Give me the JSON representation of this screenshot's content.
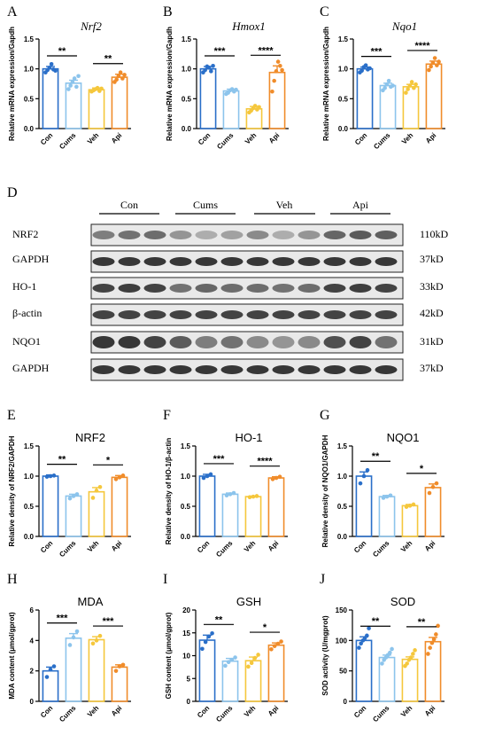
{
  "colors": {
    "Con": "#2a6fc9",
    "Cums": "#8cc4ec",
    "Veh": "#f5c73c",
    "Api": "#f08c2a"
  },
  "chart_data": [
    {
      "id": "A",
      "letter": "A",
      "type": "bar",
      "title": "Nrf2",
      "title_italic": true,
      "ylabel": "Relative mRNA expression/Gapdh",
      "ylim": [
        0,
        1.5
      ],
      "yticks": [
        0.0,
        0.5,
        1.0,
        1.5
      ],
      "tick_labels": [
        "0.0",
        "0.5",
        "1.0",
        "1.5"
      ],
      "categories": [
        "Con",
        "Cums",
        "Veh",
        "Api"
      ],
      "values": [
        1.0,
        0.76,
        0.65,
        0.86
      ],
      "errors": [
        0.04,
        0.05,
        0.03,
        0.05
      ],
      "points": [
        [
          0.94,
          0.98,
          1.02,
          1.08,
          0.99,
          0.97
        ],
        [
          0.66,
          0.72,
          0.78,
          0.84,
          0.7,
          0.88
        ],
        [
          0.62,
          0.64,
          0.66,
          0.68,
          0.63,
          0.67
        ],
        [
          0.78,
          0.82,
          0.88,
          0.94,
          0.84,
          0.9
        ]
      ],
      "sig": [
        {
          "from": 0,
          "to": 1,
          "label": "**"
        },
        {
          "from": 2,
          "to": 3,
          "label": "**"
        }
      ]
    },
    {
      "id": "B",
      "letter": "B",
      "type": "bar",
      "title": "Hmox1",
      "title_italic": true,
      "ylabel": "Relative mRNA expression/Gapdh",
      "ylim": [
        0,
        1.5
      ],
      "yticks": [
        0.0,
        0.5,
        1.0,
        1.5
      ],
      "tick_labels": [
        "0.0",
        "0.5",
        "1.0",
        "1.5"
      ],
      "categories": [
        "Con",
        "Cums",
        "Veh",
        "Api"
      ],
      "values": [
        1.0,
        0.63,
        0.33,
        0.94
      ],
      "errors": [
        0.04,
        0.03,
        0.04,
        0.11
      ],
      "points": [
        [
          0.94,
          0.98,
          1.04,
          1.02,
          0.96,
          1.05
        ],
        [
          0.58,
          0.6,
          0.64,
          0.66,
          0.62,
          0.65
        ],
        [
          0.27,
          0.3,
          0.34,
          0.38,
          0.32,
          0.36
        ],
        [
          0.62,
          0.8,
          0.96,
          1.12,
          1.05,
          0.98
        ]
      ],
      "sig": [
        {
          "from": 0,
          "to": 1,
          "label": "***"
        },
        {
          "from": 2,
          "to": 3,
          "label": "****"
        }
      ]
    },
    {
      "id": "C",
      "letter": "C",
      "type": "bar",
      "title": "Nqo1",
      "title_italic": true,
      "ylabel": "Relative mRNA expression/Gapdh",
      "ylim": [
        0,
        1.5
      ],
      "yticks": [
        0.0,
        0.5,
        1.0,
        1.5
      ],
      "tick_labels": [
        "0.0",
        "0.5",
        "1.0",
        "1.5"
      ],
      "categories": [
        "Con",
        "Cums",
        "Veh",
        "Api"
      ],
      "values": [
        1.0,
        0.72,
        0.7,
        1.08
      ],
      "errors": [
        0.03,
        0.04,
        0.04,
        0.05
      ],
      "points": [
        [
          0.94,
          0.97,
          1.03,
          1.06,
          0.99,
          1.01
        ],
        [
          0.64,
          0.68,
          0.74,
          0.8,
          0.7,
          0.72
        ],
        [
          0.6,
          0.66,
          0.72,
          0.78,
          0.68,
          0.74
        ],
        [
          0.98,
          1.04,
          1.1,
          1.18,
          1.06,
          1.12
        ]
      ],
      "sig": [
        {
          "from": 0,
          "to": 1,
          "label": "***"
        },
        {
          "from": 2,
          "to": 3,
          "label": "****"
        }
      ]
    },
    {
      "id": "E",
      "letter": "E",
      "type": "bar",
      "title": "NRF2",
      "title_italic": false,
      "ylabel": "Relative density of NRF2/GAPDH",
      "ylim": [
        0,
        1.5
      ],
      "yticks": [
        0.0,
        0.5,
        1.0,
        1.5
      ],
      "tick_labels": [
        "0.0",
        "0.5",
        "1.0",
        "1.5"
      ],
      "categories": [
        "Con",
        "Cums",
        "Veh",
        "Api"
      ],
      "values": [
        1.0,
        0.67,
        0.74,
        0.98
      ],
      "errors": [
        0.02,
        0.03,
        0.07,
        0.03
      ],
      "points": [
        [
          0.99,
          1.0,
          1.01
        ],
        [
          0.63,
          0.67,
          0.7
        ],
        [
          0.64,
          0.76,
          0.82
        ],
        [
          0.95,
          0.98,
          1.01
        ]
      ],
      "sig": [
        {
          "from": 0,
          "to": 1,
          "label": "**"
        },
        {
          "from": 2,
          "to": 3,
          "label": "*"
        }
      ]
    },
    {
      "id": "F",
      "letter": "F",
      "type": "bar",
      "title": "HO-1",
      "title_italic": false,
      "ylabel": "Relative density of HO-1/β-actin",
      "ylim": [
        0,
        1.5
      ],
      "yticks": [
        0.0,
        0.5,
        1.0,
        1.5
      ],
      "tick_labels": [
        "0.0",
        "0.5",
        "1.0",
        "1.5"
      ],
      "categories": [
        "Con",
        "Cums",
        "Veh",
        "Api"
      ],
      "values": [
        1.0,
        0.7,
        0.66,
        0.97
      ],
      "errors": [
        0.03,
        0.02,
        0.01,
        0.02
      ],
      "points": [
        [
          0.97,
          1.0,
          1.03
        ],
        [
          0.68,
          0.7,
          0.72
        ],
        [
          0.65,
          0.66,
          0.67
        ],
        [
          0.95,
          0.97,
          0.99
        ]
      ],
      "sig": [
        {
          "from": 0,
          "to": 1,
          "label": "***"
        },
        {
          "from": 2,
          "to": 3,
          "label": "****"
        }
      ]
    },
    {
      "id": "G",
      "letter": "G",
      "type": "bar",
      "title": "NQO1",
      "title_italic": false,
      "ylabel": "Relative density of NQO1/GAPDH",
      "ylim": [
        0,
        1.5
      ],
      "yticks": [
        0.0,
        0.5,
        1.0,
        1.5
      ],
      "tick_labels": [
        "0.0",
        "0.5",
        "1.0",
        "1.5"
      ],
      "categories": [
        "Con",
        "Cums",
        "Veh",
        "Api"
      ],
      "values": [
        1.0,
        0.66,
        0.51,
        0.81
      ],
      "errors": [
        0.07,
        0.02,
        0.02,
        0.06
      ],
      "points": [
        [
          0.88,
          1.0,
          1.1
        ],
        [
          0.64,
          0.66,
          0.68
        ],
        [
          0.49,
          0.51,
          0.53
        ],
        [
          0.72,
          0.82,
          0.88
        ]
      ],
      "sig": [
        {
          "from": 0,
          "to": 1,
          "label": "**"
        },
        {
          "from": 2,
          "to": 3,
          "label": "*"
        }
      ]
    },
    {
      "id": "H",
      "letter": "H",
      "type": "bar",
      "title": "MDA",
      "title_italic": false,
      "ylabel": "MDA content (μmol/gprot)",
      "ylim": [
        0,
        6
      ],
      "yticks": [
        0,
        2,
        4,
        6
      ],
      "tick_labels": [
        "0",
        "2",
        "4",
        "6"
      ],
      "categories": [
        "Con",
        "Cums",
        "Veh",
        "Api"
      ],
      "values": [
        2.0,
        4.15,
        4.05,
        2.25
      ],
      "errors": [
        0.25,
        0.3,
        0.2,
        0.15
      ],
      "points": [
        [
          1.6,
          2.1,
          2.3
        ],
        [
          3.7,
          4.2,
          4.6
        ],
        [
          3.8,
          4.0,
          4.3
        ],
        [
          2.0,
          2.3,
          2.4
        ]
      ],
      "sig": [
        {
          "from": 0,
          "to": 1,
          "label": "***"
        },
        {
          "from": 2,
          "to": 3,
          "label": "***"
        }
      ]
    },
    {
      "id": "I",
      "letter": "I",
      "type": "bar",
      "title": "GSH",
      "title_italic": false,
      "ylabel": "GSH content (μmol/gprot)",
      "ylim": [
        0,
        20
      ],
      "yticks": [
        0,
        5,
        10,
        15,
        20
      ],
      "tick_labels": [
        "0",
        "5",
        "10",
        "15",
        "20"
      ],
      "categories": [
        "Con",
        "Cums",
        "Veh",
        "Api"
      ],
      "values": [
        13.4,
        8.8,
        8.9,
        12.3
      ],
      "errors": [
        1.1,
        0.6,
        0.8,
        0.5
      ],
      "points": [
        [
          11.5,
          13.0,
          14.2,
          14.9
        ],
        [
          7.8,
          8.6,
          9.1,
          9.6
        ],
        [
          7.6,
          8.4,
          9.5,
          10.2
        ],
        [
          11.4,
          12.1,
          12.6,
          13.1
        ]
      ],
      "sig": [
        {
          "from": 0,
          "to": 1,
          "label": "**"
        },
        {
          "from": 2,
          "to": 3,
          "label": "*"
        }
      ]
    },
    {
      "id": "J",
      "letter": "J",
      "type": "bar",
      "title": "SOD",
      "title_italic": false,
      "ylabel": "SOD activity  (U/mgprot)",
      "ylim": [
        0,
        150
      ],
      "yticks": [
        0,
        50,
        100,
        150
      ],
      "tick_labels": [
        "0",
        "50",
        "100",
        "150"
      ],
      "categories": [
        "Con",
        "Cums",
        "Veh",
        "Api"
      ],
      "values": [
        100,
        72,
        69,
        98
      ],
      "errors": [
        6,
        4,
        4,
        7
      ],
      "points": [
        [
          88,
          95,
          100,
          104,
          108,
          120
        ],
        [
          62,
          68,
          72,
          76,
          80,
          86
        ],
        [
          58,
          62,
          68,
          72,
          78,
          84
        ],
        [
          78,
          88,
          96,
          102,
          110,
          124
        ]
      ],
      "sig": [
        {
          "from": 0,
          "to": 1,
          "label": "**"
        },
        {
          "from": 2,
          "to": 3,
          "label": "**"
        }
      ]
    }
  ],
  "western_blot": {
    "letter": "D",
    "groups": [
      "Con",
      "Cums",
      "Veh",
      "Api"
    ],
    "rows": [
      {
        "label": "NRF2",
        "size": "110kD"
      },
      {
        "label": "GAPDH",
        "size": "37kD"
      },
      {
        "label": "HO-1",
        "size": "33kD"
      },
      {
        "label": "β-actin",
        "size": "42kD"
      },
      {
        "label": "NQO1",
        "size": "31kD"
      },
      {
        "label": "GAPDH",
        "size": "37kD"
      }
    ]
  }
}
